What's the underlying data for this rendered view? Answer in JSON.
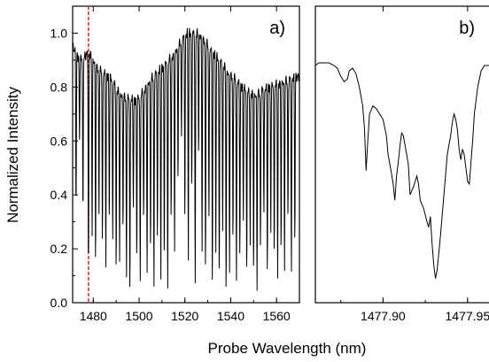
{
  "chart_data": [
    {
      "type": "line",
      "panel_label": "a)",
      "xlabel": "Probe Wavelength (nm)",
      "ylabel": "Normalized Intensity",
      "xlim": [
        1471,
        1570
      ],
      "ylim": [
        0.0,
        1.1
      ],
      "x_ticks": [
        "1480",
        "1500",
        "1520",
        "1540",
        "1560"
      ],
      "y_ticks": [
        "0.0",
        "0.2",
        "0.4",
        "0.6",
        "0.8",
        "1.0"
      ],
      "highlight_band": {
        "x": [
          1477.85,
          1477.97
        ],
        "color": "#e8312a",
        "style": "dashed"
      },
      "series": [
        {
          "envelope": {
            "x": [
              1471,
              1474,
              1476,
              1478,
              1480,
              1482,
              1485,
              1488,
              1490,
              1492,
              1495,
              1498,
              1500,
              1503,
              1506,
              1510,
              1513,
              1515,
              1517,
              1519,
              1521,
              1523,
              1525,
              1527,
              1529,
              1531,
              1533,
              1535,
              1537,
              1539,
              1541,
              1543,
              1545,
              1548,
              1551,
              1554,
              1557,
              1560,
              1563,
              1566,
              1570
            ],
            "y": [
              0.95,
              0.9,
              0.91,
              0.93,
              0.9,
              0.87,
              0.85,
              0.83,
              0.8,
              0.77,
              0.76,
              0.75,
              0.76,
              0.8,
              0.84,
              0.87,
              0.9,
              0.92,
              0.95,
              0.98,
              1.0,
              1.0,
              1.0,
              0.99,
              0.97,
              0.94,
              0.92,
              0.9,
              0.88,
              0.85,
              0.84,
              0.82,
              0.8,
              0.78,
              0.77,
              0.79,
              0.8,
              0.81,
              0.82,
              0.83,
              0.84
            ]
          },
          "dips": {
            "x": [
              1472.5,
              1474,
              1475.5,
              1477.9,
              1479.5,
              1481,
              1482.5,
              1484,
              1485.5,
              1487,
              1488.5,
              1490,
              1491.5,
              1493,
              1494.5,
              1496,
              1497.5,
              1499,
              1500.5,
              1502,
              1503.5,
              1505,
              1506.5,
              1508,
              1509.5,
              1511,
              1512.5,
              1514,
              1515.5,
              1517,
              1518.5,
              1520,
              1521.5,
              1523,
              1524.5,
              1526,
              1527.5,
              1529,
              1530.5,
              1532,
              1533.5,
              1535,
              1536.5,
              1538,
              1539.5,
              1541,
              1542.5,
              1544,
              1545.5,
              1547,
              1548.5,
              1550,
              1551.5,
              1553,
              1554.5,
              1556,
              1557.5,
              1559,
              1560.5,
              1562,
              1563.5,
              1565,
              1566.5,
              1568
            ],
            "y": [
              0.35,
              0.6,
              0.3,
              0.09,
              0.25,
              0.15,
              0.32,
              0.2,
              0.12,
              0.3,
              0.22,
              0.1,
              0.16,
              0.28,
              0.08,
              0.02,
              0.35,
              0.15,
              0.06,
              0.3,
              0.12,
              0.2,
              0.04,
              0.22,
              0.08,
              0.15,
              0.03,
              0.3,
              0.2,
              0.45,
              0.6,
              0.3,
              0.15,
              0.4,
              0.05,
              0.55,
              0.2,
              0.1,
              0.3,
              0.05,
              0.18,
              0.07,
              0.25,
              0.03,
              0.12,
              0.22,
              0.06,
              0.16,
              0.3,
              0.08,
              0.2,
              0.12,
              0.05,
              0.18,
              0.32,
              0.1,
              0.25,
              0.15,
              0.08,
              0.2,
              0.12,
              0.3,
              0.1,
              0.22
            ]
          }
        }
      ]
    },
    {
      "type": "line",
      "panel_label": "b)",
      "xlabel": "Probe Wavelength (nm)",
      "ylabel": "",
      "xlim": [
        1477.86,
        1477.97
      ],
      "ylim": [
        0.0,
        1.1
      ],
      "x_ticks": [
        "1477.90",
        "1477.95"
      ],
      "series": [
        {
          "x": [
            1477.86,
            1477.862,
            1477.865,
            1477.868,
            1477.871,
            1477.873,
            1477.875,
            1477.877,
            1477.879,
            1477.88,
            1477.882,
            1477.884,
            1477.886,
            1477.888,
            1477.889,
            1477.89,
            1477.891,
            1477.892,
            1477.894,
            1477.896,
            1477.898,
            1477.9,
            1477.902,
            1477.903,
            1477.905,
            1477.906,
            1477.907,
            1477.908,
            1477.909,
            1477.91,
            1477.911,
            1477.912,
            1477.914,
            1477.915,
            1477.916,
            1477.918,
            1477.92,
            1477.921,
            1477.922,
            1477.924,
            1477.926,
            1477.927,
            1477.928,
            1477.929,
            1477.93,
            1477.931,
            1477.932,
            1477.934,
            1477.936,
            1477.938,
            1477.94,
            1477.941,
            1477.942,
            1477.943,
            1477.944,
            1477.945,
            1477.946,
            1477.947,
            1477.948,
            1477.949,
            1477.95,
            1477.951,
            1477.952,
            1477.953,
            1477.954,
            1477.956,
            1477.958,
            1477.96,
            1477.963,
            1477.966,
            1477.97
          ],
          "y": [
            0.88,
            0.89,
            0.89,
            0.89,
            0.88,
            0.87,
            0.84,
            0.82,
            0.83,
            0.86,
            0.87,
            0.85,
            0.8,
            0.73,
            0.65,
            0.49,
            0.6,
            0.7,
            0.73,
            0.72,
            0.7,
            0.68,
            0.62,
            0.55,
            0.48,
            0.44,
            0.38,
            0.47,
            0.52,
            0.58,
            0.63,
            0.62,
            0.55,
            0.51,
            0.4,
            0.43,
            0.47,
            0.44,
            0.38,
            0.35,
            0.3,
            0.28,
            0.32,
            0.22,
            0.14,
            0.09,
            0.12,
            0.25,
            0.4,
            0.55,
            0.62,
            0.67,
            0.7,
            0.68,
            0.64,
            0.57,
            0.53,
            0.57,
            0.55,
            0.5,
            0.45,
            0.44,
            0.52,
            0.6,
            0.7,
            0.8,
            0.86,
            0.88,
            0.88,
            0.88,
            0.87
          ]
        }
      ]
    }
  ]
}
